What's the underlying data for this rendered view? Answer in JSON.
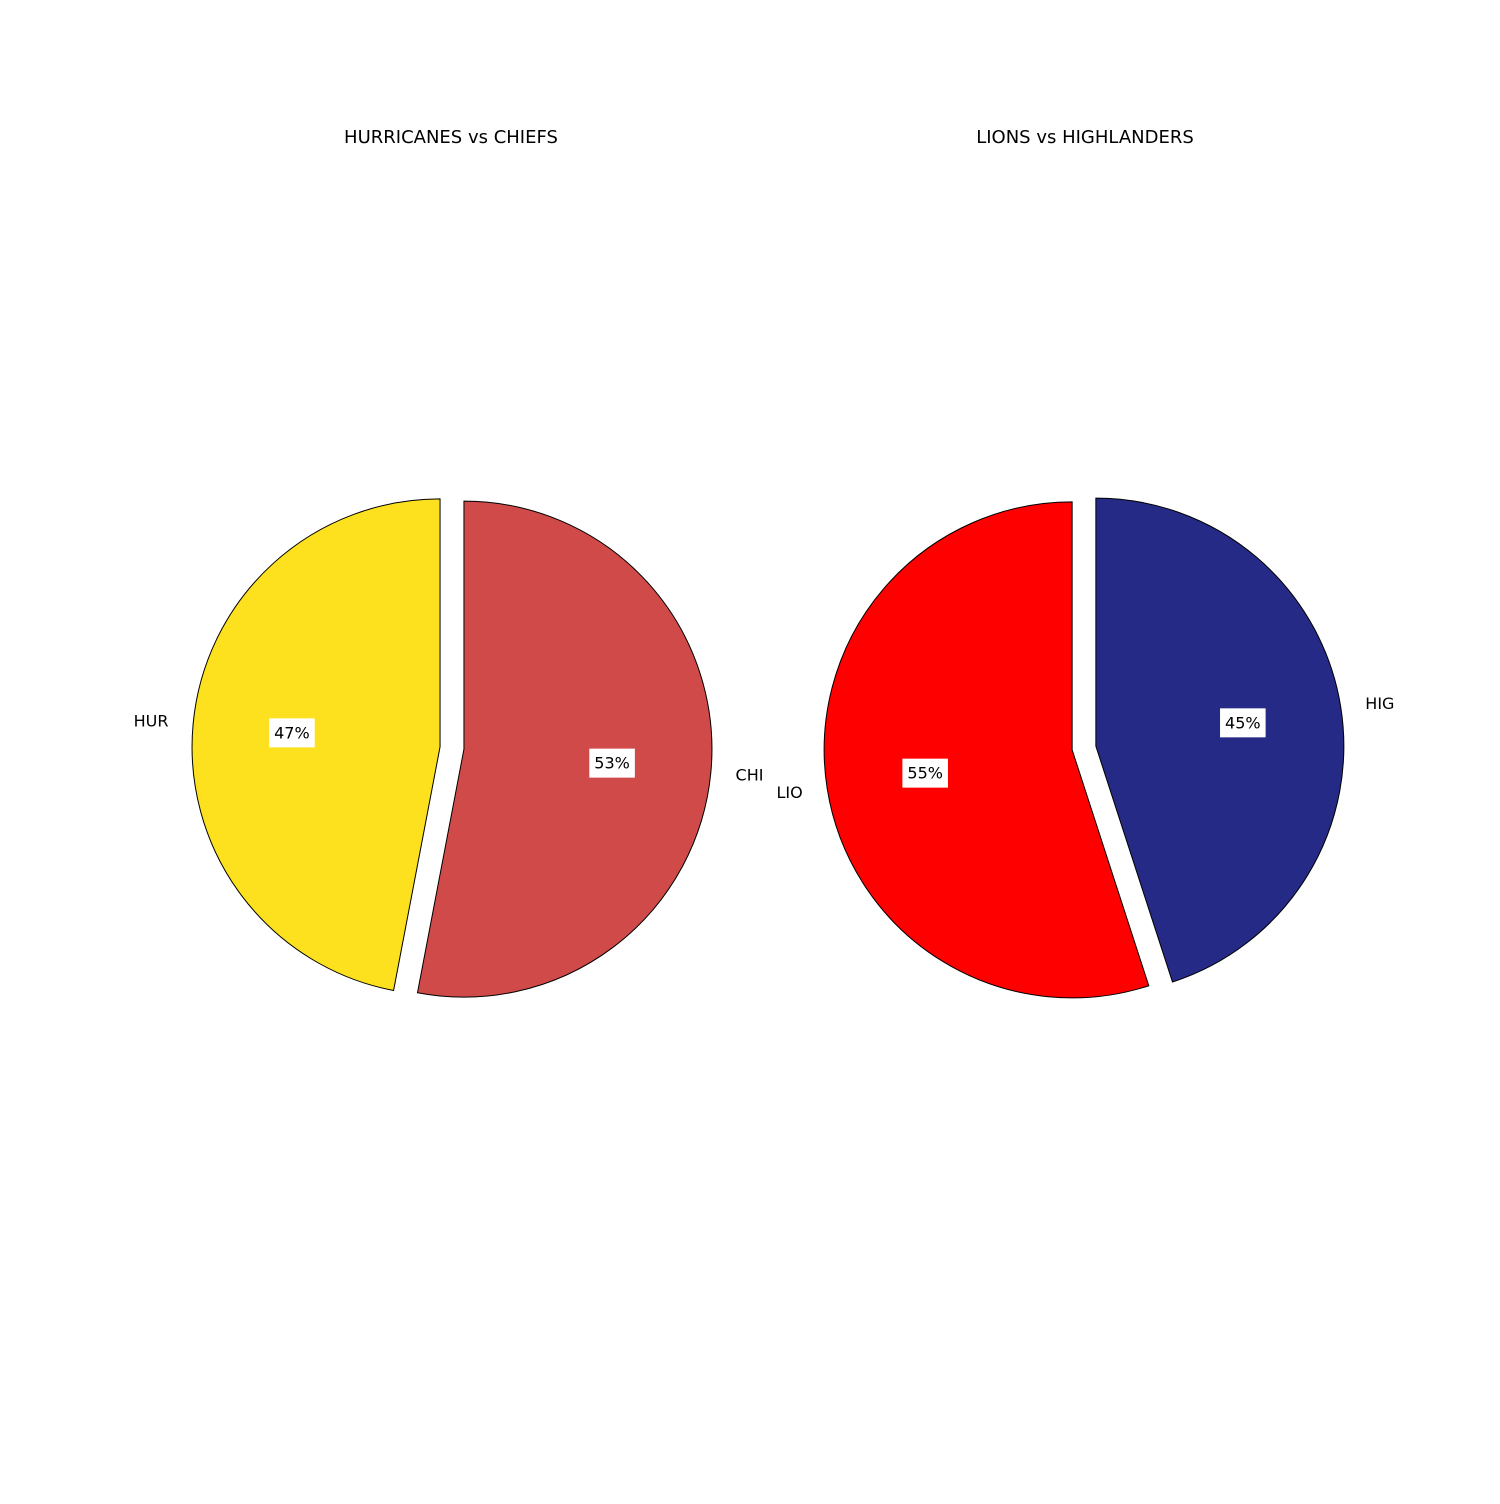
{
  "colors": {
    "background": "#ffffff",
    "edge": "#000000",
    "label_box": "#ffffff"
  },
  "chart_data": [
    {
      "type": "pie",
      "title": "HURRICANES vs CHIEFS",
      "slices": [
        {
          "label": "HUR",
          "value": 47,
          "pct_text": "47%",
          "color": "#fde11e"
        },
        {
          "label": "CHI",
          "value": 53,
          "pct_text": "53%",
          "color": "#d04a49"
        }
      ],
      "start_angle_deg": 90,
      "direction": "counterclockwise",
      "exploded": true,
      "legend": "none"
    },
    {
      "type": "pie",
      "title": "LIONS vs HIGHLANDERS",
      "slices": [
        {
          "label": "LIO",
          "value": 55,
          "pct_text": "55%",
          "color": "#ff0000"
        },
        {
          "label": "HIG",
          "value": 45,
          "pct_text": "45%",
          "color": "#252a86"
        }
      ],
      "start_angle_deg": 90,
      "direction": "counterclockwise",
      "exploded": true,
      "legend": "none"
    }
  ]
}
